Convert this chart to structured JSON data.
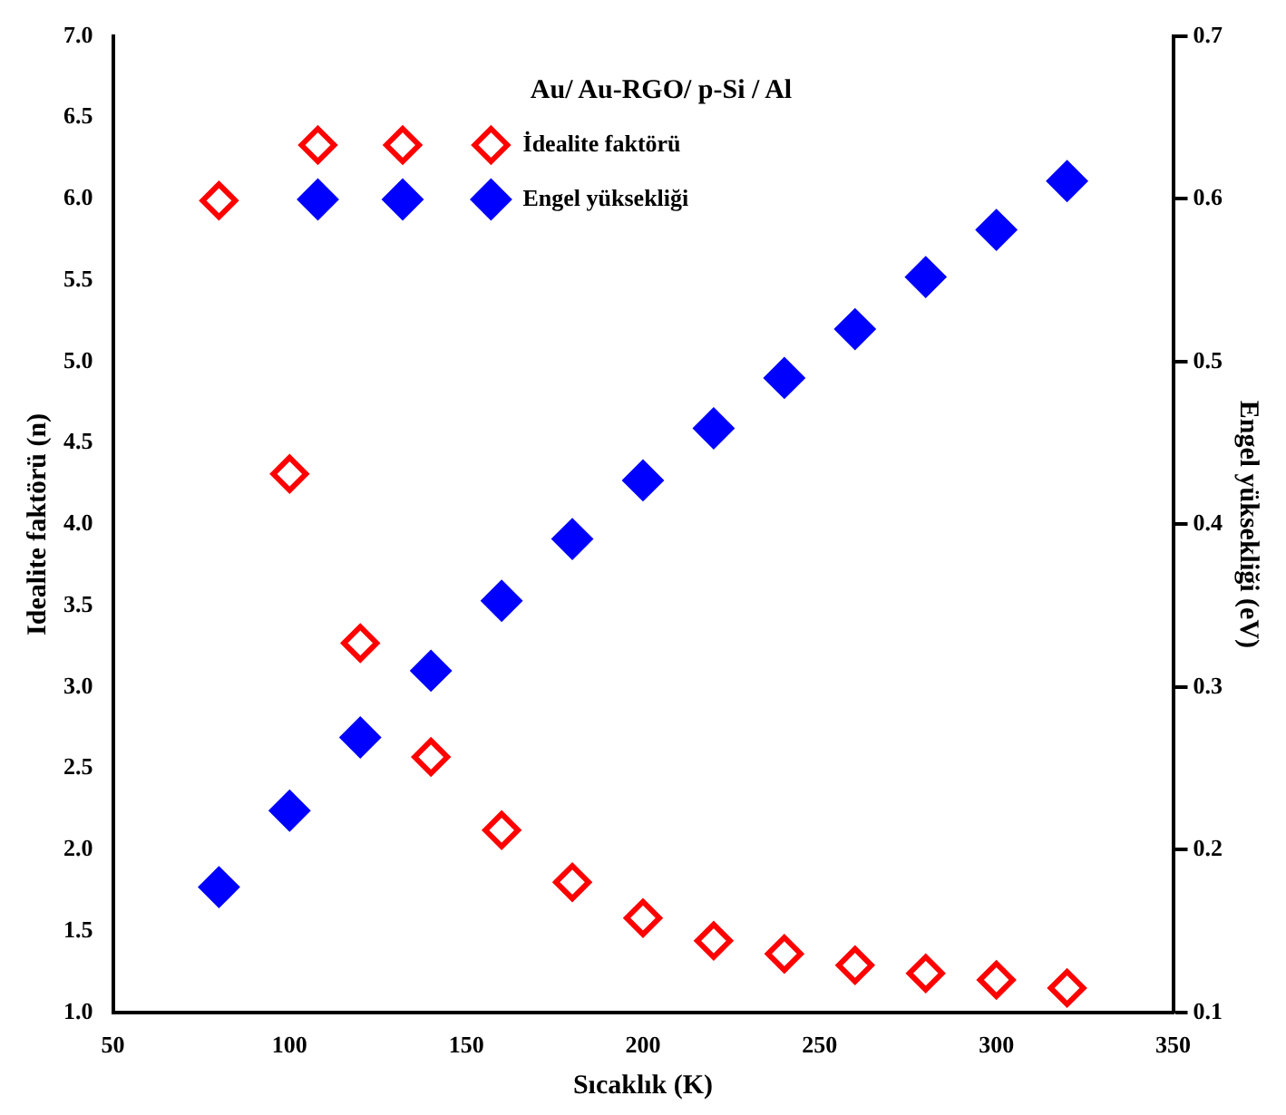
{
  "chart_data": {
    "type": "scatter",
    "title": "Au/ Au-RGO/ p-Si / Al",
    "xlabel": "Sıcaklık (K)",
    "ylabel": "Idealite faktörü (n)",
    "y2label": "Engel yüksekliği (eV)",
    "x": [
      80,
      100,
      120,
      140,
      160,
      180,
      200,
      220,
      240,
      260,
      280,
      300,
      320
    ],
    "series": [
      {
        "name": "İdealite faktörü",
        "color": "#ff0000",
        "values": [
          5.99,
          4.31,
          3.27,
          2.57,
          2.12,
          1.8,
          1.58,
          1.44,
          1.36,
          1.29,
          1.24,
          1.2,
          1.15
        ]
      },
      {
        "name": "Engel yüksekliği",
        "color": "#0000ff",
        "axis": "y2",
        "values": [
          0.177,
          0.224,
          0.269,
          0.31,
          0.353,
          0.391,
          0.427,
          0.459,
          0.49,
          0.52,
          0.552,
          0.581,
          0.611
        ]
      }
    ],
    "xlim": [
      50,
      350
    ],
    "xticks": [
      50,
      100,
      150,
      200,
      250,
      300,
      350
    ],
    "ylim": [
      1,
      7
    ],
    "yticks": [
      {
        "value": 1,
        "label": "1.0"
      },
      1.5,
      {
        "value": 2,
        "label": "2.0"
      },
      2.5,
      {
        "value": 3,
        "label": "3.0"
      },
      3.5,
      {
        "value": 4,
        "label": "4.0"
      },
      4.5,
      {
        "value": 5,
        "label": "5.0"
      },
      5.5,
      {
        "value": 6,
        "label": "6.0"
      },
      6.5,
      {
        "value": 7,
        "label": "7.0"
      }
    ],
    "y2lim": [
      0.1,
      0.7
    ],
    "y2ticks": [
      0.1,
      0.2,
      0.3,
      0.4,
      0.5,
      0.6,
      0.7
    ],
    "legend": "top",
    "marker": "diamond",
    "grid": false
  }
}
